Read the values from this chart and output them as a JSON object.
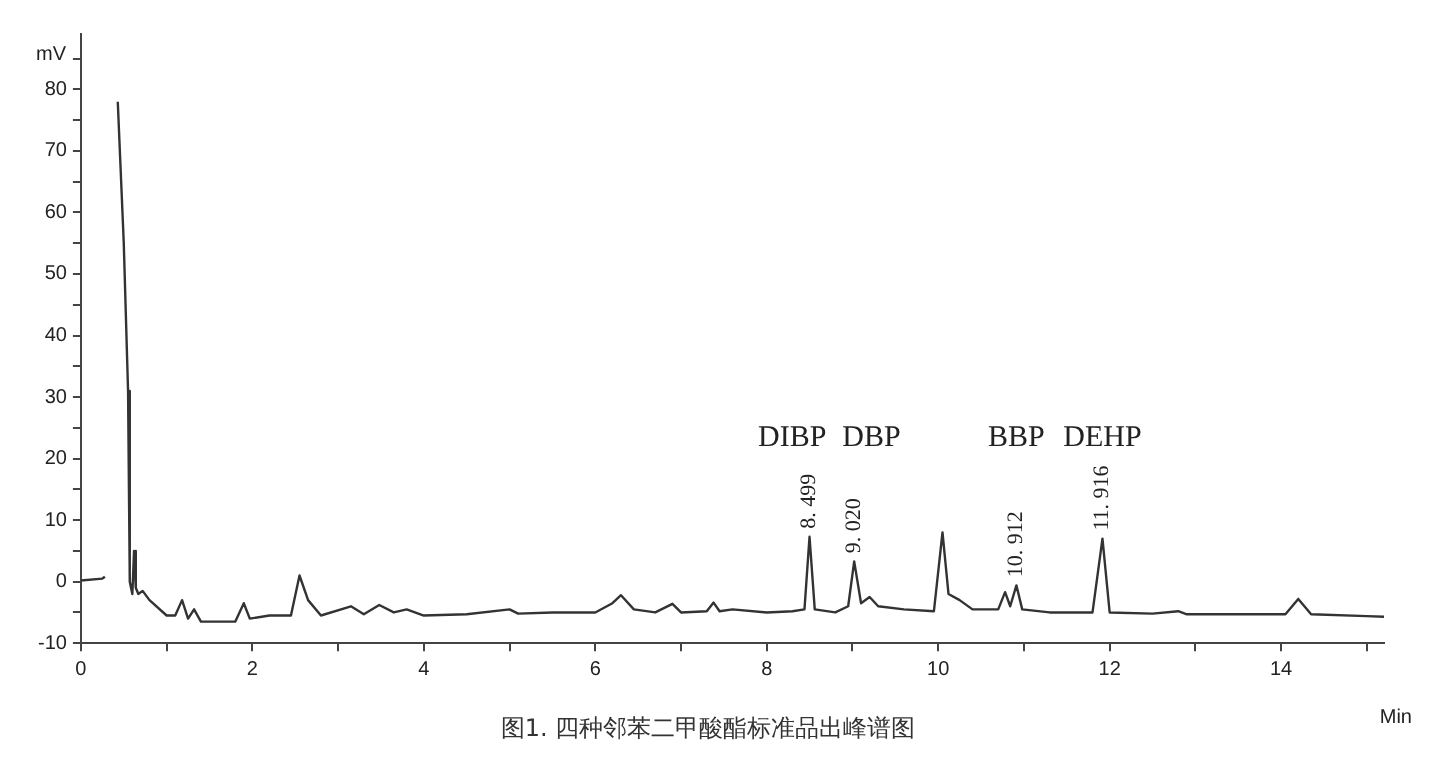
{
  "chart_data": {
    "type": "line",
    "title": "图1. 四种邻苯二甲酸酯标准品出峰谱图",
    "xlabel": "Min",
    "ylabel": "mV",
    "x": [
      0,
      0.25,
      0.28,
      0.29,
      0.42,
      0.43,
      0.5,
      0.55,
      0.57,
      0.6,
      0.62,
      0.64,
      0.67,
      0.72,
      0.8,
      1.0,
      1.1,
      1.18,
      1.25,
      1.32,
      1.4,
      1.8,
      1.9,
      1.97,
      2.2,
      2.45,
      2.55,
      2.65,
      2.8,
      3.15,
      3.3,
      3.48,
      3.65,
      3.8,
      4.0,
      4.5,
      5.0,
      5.1,
      5.5,
      6.0,
      6.2,
      6.3,
      6.45,
      6.7,
      6.9,
      7.0,
      7.3,
      7.38,
      7.45,
      7.6,
      8.0,
      8.3,
      8.44,
      8.499,
      8.56,
      8.8,
      8.95,
      9.02,
      9.1,
      9.2,
      9.3,
      9.6,
      9.95,
      10.05,
      10.12,
      10.25,
      10.4,
      10.7,
      10.78,
      10.84,
      10.912,
      10.98,
      11.3,
      11.8,
      11.916,
      12.0,
      12.5,
      12.8,
      12.9,
      13.5,
      14.05,
      14.2,
      14.35,
      15.0,
      15.2
    ],
    "series": [
      {
        "color": "#333333",
        "values": [
          0.2,
          0.5,
          0.8,
          null,
          null,
          78,
          55,
          31,
          0,
          -2,
          5,
          -1,
          -2,
          -1.5,
          -3,
          -5.5,
          -5.5,
          -3,
          -6,
          -4.5,
          -6.5,
          -6.5,
          -3.5,
          -6,
          -5.5,
          -5.5,
          1,
          -3,
          -5.5,
          -4,
          -5.3,
          -3.8,
          -5,
          -4.5,
          -5.5,
          -5.3,
          -4.5,
          -5.2,
          -5,
          -5,
          -3.5,
          -2.2,
          -4.5,
          -5,
          -3.6,
          -5,
          -4.8,
          -3.4,
          -4.8,
          -4.5,
          -5,
          -4.8,
          -4.5,
          7.3,
          -4.5,
          -5,
          -4,
          3.3,
          -3.5,
          -2.5,
          -4,
          -4.5,
          -4.8,
          8,
          -2,
          -3,
          -4.5,
          -4.5,
          -1.7,
          -4,
          -0.6,
          -4.5,
          -5,
          -5,
          7,
          -5,
          -5.2,
          -4.8,
          -5.3,
          -5.3,
          -5.3,
          -2.8,
          -5.3,
          -5.6,
          -5.7
        ]
      }
    ],
    "annotations": [
      "DIBP",
      "DBP",
      "BBP",
      "DEHP",
      {
        "text": "8. 499",
        "x": 8.499,
        "y": 7.3
      },
      {
        "text": "9. 020",
        "x": 9.02,
        "y": 3.3
      },
      {
        "text": "10. 912",
        "x": 10.912,
        "y": -0.6
      },
      {
        "text": "11. 916",
        "x": 11.916,
        "y": 7
      }
    ],
    "xlim": [
      0,
      15.2
    ],
    "ylim": [
      -10,
      89
    ],
    "xticks": [
      0,
      {
        "value": 1,
        "label": null
      },
      2,
      {
        "value": 3,
        "label": null
      },
      4,
      {
        "value": 5,
        "label": null
      },
      6,
      {
        "value": 7,
        "label": null
      },
      8,
      {
        "value": 9,
        "label": null
      },
      10,
      {
        "value": 11,
        "label": null
      },
      12,
      {
        "value": 13,
        "label": null
      },
      14,
      {
        "value": 15,
        "label": null
      }
    ],
    "yticks": [
      -10,
      {
        "value": -5,
        "label": null
      },
      0,
      {
        "value": 5,
        "label": null
      },
      10,
      {
        "value": 15,
        "label": null
      },
      20,
      {
        "value": 25,
        "label": null
      },
      30,
      {
        "value": 35,
        "label": null
      },
      40,
      {
        "value": 45,
        "label": null
      },
      50,
      {
        "value": 55,
        "label": null
      },
      60,
      {
        "value": 65,
        "label": null
      },
      70,
      {
        "value": 75,
        "label": null
      },
      80,
      {
        "value": 85,
        "label": null
      }
    ],
    "grid": false,
    "legend": false,
    "marker": "none",
    "line_style": "solid"
  }
}
